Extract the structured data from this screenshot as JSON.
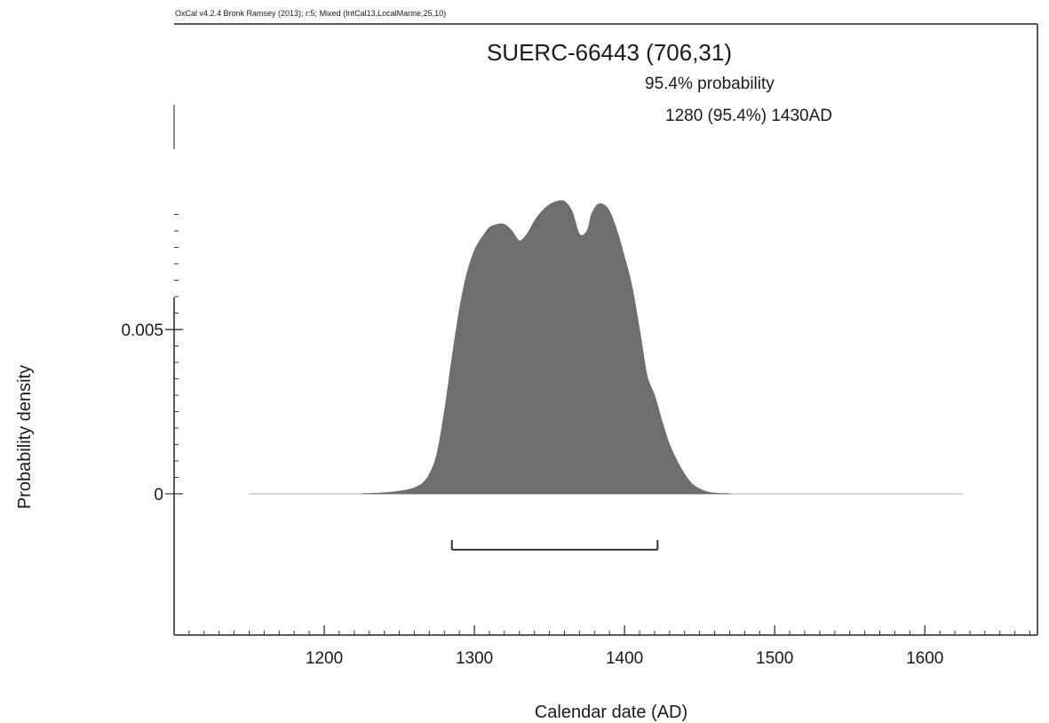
{
  "header": {
    "software_line": "OxCal v4.2.4 Bronk Ramsey (2013); r:5; Mixed (IntCal13,LocalMarine,25,10)"
  },
  "chart_data": {
    "type": "area",
    "title": "SUERC-66443 (706,31)",
    "probability_heading": "95.4% probability",
    "range_text": "1280 (95.4%) 1430AD",
    "xlabel": "Calendar date (AD)",
    "ylabel": "Probability density",
    "xlim": [
      1100,
      1675
    ],
    "ylim": [
      -0.0043,
      0.0143
    ],
    "x_ticks": [
      1200,
      1300,
      1400,
      1500,
      1600
    ],
    "x_minor_step": 10,
    "y_ticks": [
      {
        "value": 0,
        "label": "0"
      },
      {
        "value": 0.005,
        "label": "0.005"
      }
    ],
    "y_minor_step": 0.0005,
    "y_minor_max": 0.0085,
    "fill_color": "#6e6e6e",
    "baseline": {
      "from": 1150,
      "to": 1625
    },
    "range_bar": {
      "from": 1285,
      "to": 1422,
      "y": -0.0017
    },
    "x": [
      1225,
      1240,
      1250,
      1258,
      1265,
      1270,
      1275,
      1280,
      1285,
      1290,
      1295,
      1300,
      1305,
      1310,
      1315,
      1320,
      1325,
      1330,
      1335,
      1340,
      1345,
      1350,
      1355,
      1360,
      1365,
      1370,
      1375,
      1378,
      1382,
      1386,
      1390,
      1395,
      1400,
      1405,
      1410,
      1415,
      1420,
      1425,
      1430,
      1435,
      1440,
      1445,
      1450,
      1455,
      1460,
      1470
    ],
    "y": [
      0,
      3e-05,
      8e-05,
      0.00015,
      0.0003,
      0.0006,
      0.0012,
      0.0025,
      0.0041,
      0.0056,
      0.0067,
      0.0074,
      0.0078,
      0.0081,
      0.0082,
      0.0082,
      0.008,
      0.0077,
      0.0079,
      0.0083,
      0.0086,
      0.0088,
      0.0089,
      0.0089,
      0.0086,
      0.0079,
      0.008,
      0.0085,
      0.0088,
      0.0088,
      0.0086,
      0.008,
      0.0072,
      0.0063,
      0.005,
      0.0036,
      0.003,
      0.0022,
      0.0015,
      0.001,
      0.0006,
      0.0003,
      0.00015,
      6e-05,
      2e-05,
      0
    ]
  }
}
